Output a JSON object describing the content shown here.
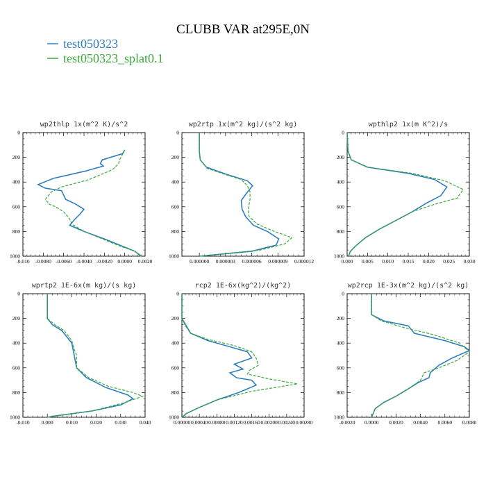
{
  "figure_title": "CLUBB VAR at295E,0N",
  "colors": {
    "test050323": "#2e7ebf",
    "test050323_splat0.1": "#3aa83a"
  },
  "legend": [
    {
      "name": "test050323",
      "color": "#2e7ebf",
      "style": "solid"
    },
    {
      "name": "test050323_splat0.1",
      "color": "#3aa83a",
      "style": "dashed"
    }
  ],
  "chart_data": [
    {
      "type": "line",
      "title": "wp2thlp  1x(m^2 K)/s^2",
      "xlim": [
        -0.01,
        0.002
      ],
      "ylim": [
        0,
        1000
      ],
      "y_inverted": true,
      "xticks": [
        "-0.010",
        "-0.0080",
        "-0.0060",
        "-0.0040",
        "-0.0020",
        "0.0000",
        "0.0020"
      ],
      "xtick_values": [
        -0.01,
        -0.008,
        -0.006,
        -0.004,
        -0.002,
        0,
        0.002
      ],
      "yticks": [
        "0",
        "200",
        "400",
        "600",
        "800",
        "1000"
      ],
      "series": [
        {
          "name": "test050323",
          "points": [
            [
              0.0,
              140
            ],
            [
              -0.0002,
              170
            ],
            [
              -0.0022,
              220
            ],
            [
              -0.0024,
              250
            ],
            [
              -0.0021,
              270
            ],
            [
              -0.0038,
              310
            ],
            [
              -0.007,
              370
            ],
            [
              -0.0085,
              420
            ],
            [
              -0.0078,
              450
            ],
            [
              -0.0062,
              470
            ],
            [
              -0.0058,
              540
            ],
            [
              -0.0048,
              580
            ],
            [
              -0.004,
              620
            ],
            [
              -0.0044,
              660
            ],
            [
              -0.005,
              710
            ],
            [
              -0.0054,
              750
            ],
            [
              -0.004,
              800
            ],
            [
              -0.002,
              860
            ],
            [
              -0.0002,
              920
            ],
            [
              0.001,
              960
            ],
            [
              0.0016,
              1000
            ]
          ]
        },
        {
          "name": "test050323_splat0.1",
          "points": [
            [
              0.0,
              140
            ],
            [
              -0.0003,
              190
            ],
            [
              -0.0005,
              220
            ],
            [
              -0.0006,
              250
            ],
            [
              -0.0012,
              300
            ],
            [
              -0.0035,
              380
            ],
            [
              -0.0062,
              440
            ],
            [
              -0.0072,
              480
            ],
            [
              -0.0078,
              540
            ],
            [
              -0.0074,
              580
            ],
            [
              -0.0068,
              600
            ],
            [
              -0.006,
              640
            ],
            [
              -0.0054,
              700
            ],
            [
              -0.0052,
              740
            ],
            [
              -0.004,
              800
            ],
            [
              -0.0022,
              860
            ],
            [
              -0.0004,
              920
            ],
            [
              0.001,
              960
            ],
            [
              0.0017,
              1000
            ]
          ]
        }
      ]
    },
    {
      "type": "line",
      "title": "wp2rtp  1x(m^2 kg)/(s^2 kg)",
      "xlim": [
        -2e-06,
        1.2e-05
      ],
      "ylim": [
        0,
        1000
      ],
      "y_inverted": true,
      "xticks": [
        "0.000000",
        "0.000003",
        "0.000006",
        "0.000009",
        "0.000012"
      ],
      "xtick_values": [
        0,
        3e-06,
        6e-06,
        9e-06,
        1.2e-05
      ],
      "yticks": [
        "0",
        "200",
        "400",
        "600",
        "800",
        "1000"
      ],
      "series": [
        {
          "name": "test050323",
          "points": [
            [
              0.0,
              0
            ],
            [
              0.0,
              150
            ],
            [
              1e-07,
              220
            ],
            [
              8e-07,
              280
            ],
            [
              3.2e-06,
              340
            ],
            [
              5.5e-06,
              390
            ],
            [
              6.1e-06,
              430
            ],
            [
              5.3e-06,
              500
            ],
            [
              4.8e-06,
              550
            ],
            [
              4.9e-06,
              620
            ],
            [
              5.3e-06,
              680
            ],
            [
              6.2e-06,
              750
            ],
            [
              7.8e-06,
              800
            ],
            [
              9.1e-06,
              860
            ],
            [
              8.8e-06,
              910
            ],
            [
              6e-06,
              960
            ],
            [
              0.0,
              1000
            ]
          ]
        },
        {
          "name": "test050323_splat0.1",
          "points": [
            [
              0.0,
              0
            ],
            [
              0.0,
              150
            ],
            [
              1e-07,
              220
            ],
            [
              9e-07,
              290
            ],
            [
              3e-06,
              340
            ],
            [
              4.8e-06,
              380
            ],
            [
              5.5e-06,
              430
            ],
            [
              5.8e-06,
              480
            ],
            [
              5.8e-06,
              540
            ],
            [
              5.6e-06,
              620
            ],
            [
              5.7e-06,
              680
            ],
            [
              6.6e-06,
              740
            ],
            [
              8.6e-06,
              800
            ],
            [
              1.06e-05,
              850
            ],
            [
              9.8e-06,
              900
            ],
            [
              7e-06,
              950
            ],
            [
              0.0,
              1000
            ]
          ]
        }
      ]
    },
    {
      "type": "line",
      "title": "wpthlp2  1x(m K^2)/s",
      "xlim": [
        0.0,
        0.03
      ],
      "ylim": [
        0,
        1000
      ],
      "y_inverted": true,
      "xticks": [
        "0.000",
        "0.005",
        "0.010",
        "0.015",
        "0.020",
        "0.025",
        "0.030"
      ],
      "xtick_values": [
        0,
        0.005,
        0.01,
        0.015,
        0.02,
        0.025,
        0.03
      ],
      "yticks": [
        "0",
        "200",
        "400",
        "600",
        "800",
        "1000"
      ],
      "series": [
        {
          "name": "test050323",
          "points": [
            [
              0.0,
              0
            ],
            [
              0.0002,
              150
            ],
            [
              0.001,
              220
            ],
            [
              0.005,
              280
            ],
            [
              0.015,
              330
            ],
            [
              0.0215,
              380
            ],
            [
              0.0245,
              440
            ],
            [
              0.023,
              510
            ],
            [
              0.0195,
              570
            ],
            [
              0.016,
              640
            ],
            [
              0.012,
              710
            ],
            [
              0.008,
              780
            ],
            [
              0.0045,
              850
            ],
            [
              0.002,
              920
            ],
            [
              0.0008,
              960
            ],
            [
              0.0003,
              1000
            ]
          ]
        },
        {
          "name": "test050323_splat0.1",
          "points": [
            [
              0.0,
              0
            ],
            [
              0.0002,
              150
            ],
            [
              0.001,
              220
            ],
            [
              0.005,
              280
            ],
            [
              0.016,
              330
            ],
            [
              0.024,
              390
            ],
            [
              0.0285,
              460
            ],
            [
              0.027,
              530
            ],
            [
              0.0215,
              580
            ],
            [
              0.016,
              640
            ],
            [
              0.012,
              710
            ],
            [
              0.008,
              780
            ],
            [
              0.0045,
              850
            ],
            [
              0.002,
              920
            ],
            [
              0.0008,
              960
            ],
            [
              0.0003,
              1000
            ]
          ]
        }
      ]
    },
    {
      "type": "line",
      "title": "wprtp2  1E-6x(m kg)/(s kg)",
      "xlim": [
        -0.01,
        0.04
      ],
      "ylim": [
        0,
        1000
      ],
      "y_inverted": true,
      "xticks": [
        "-0.010",
        "0.000",
        "0.010",
        "0.020",
        "0.030",
        "0.040"
      ],
      "xtick_values": [
        -0.01,
        0,
        0.01,
        0.02,
        0.03,
        0.04
      ],
      "yticks": [
        "0",
        "200",
        "400",
        "600",
        "800",
        "1000"
      ],
      "series": [
        {
          "name": "test050323",
          "points": [
            [
              0.0,
              0
            ],
            [
              0.0,
              200
            ],
            [
              0.002,
              250
            ],
            [
              0.006,
              300
            ],
            [
              0.01,
              400
            ],
            [
              0.011,
              500
            ],
            [
              0.012,
              600
            ],
            [
              0.016,
              680
            ],
            [
              0.024,
              760
            ],
            [
              0.033,
              820
            ],
            [
              0.035,
              850
            ],
            [
              0.03,
              900
            ],
            [
              0.018,
              950
            ],
            [
              0.003,
              990
            ],
            [
              0.0,
              1000
            ]
          ]
        },
        {
          "name": "test050323_splat0.1",
          "points": [
            [
              0.0,
              0
            ],
            [
              0.0,
              200
            ],
            [
              0.003,
              250
            ],
            [
              0.007,
              300
            ],
            [
              0.01,
              380
            ],
            [
              0.011,
              450
            ],
            [
              0.012,
              500
            ],
            [
              0.012,
              600
            ],
            [
              0.017,
              680
            ],
            [
              0.025,
              750
            ],
            [
              0.035,
              800
            ],
            [
              0.039,
              830
            ],
            [
              0.032,
              880
            ],
            [
              0.018,
              950
            ],
            [
              0.003,
              990
            ],
            [
              0.0,
              1000
            ]
          ]
        }
      ]
    },
    {
      "type": "line",
      "title": "rcp2  1E-6x(kg^2)/(kg^2)",
      "xlim": [
        0.0,
        0.0028
      ],
      "ylim": [
        0,
        1000
      ],
      "y_inverted": true,
      "xticks": [
        "0.00000",
        "0.00040",
        "0.00080",
        "0.00120",
        "0.00160",
        "0.00200",
        "0.00240",
        "0.00280"
      ],
      "xtick_values": [
        0,
        0.0004,
        0.0008,
        0.0012,
        0.0016,
        0.002,
        0.0024,
        0.0028
      ],
      "yticks": [
        "0",
        "200",
        "400",
        "600",
        "800",
        "1000"
      ],
      "series": [
        {
          "name": "test050323",
          "points": [
            [
              0.0,
              0
            ],
            [
              0.0,
              200
            ],
            [
              0.0001,
              260
            ],
            [
              0.0002,
              320
            ],
            [
              0.0006,
              380
            ],
            [
              0.0011,
              430
            ],
            [
              0.0015,
              470
            ],
            [
              0.0016,
              520
            ],
            [
              0.0012,
              570
            ],
            [
              0.0014,
              610
            ],
            [
              0.0011,
              640
            ],
            [
              0.00125,
              680
            ],
            [
              0.0016,
              700
            ],
            [
              0.0017,
              740
            ],
            [
              0.0013,
              800
            ],
            [
              0.0008,
              860
            ],
            [
              0.0004,
              920
            ],
            [
              0.0001,
              970
            ],
            [
              0.0,
              1000
            ]
          ]
        },
        {
          "name": "test050323_splat0.1",
          "points": [
            [
              0.0,
              0
            ],
            [
              0.0,
              200
            ],
            [
              8e-05,
              260
            ],
            [
              0.0002,
              320
            ],
            [
              0.0006,
              370
            ],
            [
              0.0012,
              420
            ],
            [
              0.0016,
              470
            ],
            [
              0.0017,
              520
            ],
            [
              0.00175,
              580
            ],
            [
              0.00155,
              620
            ],
            [
              0.0015,
              650
            ],
            [
              0.002,
              690
            ],
            [
              0.00265,
              730
            ],
            [
              0.0016,
              790
            ],
            [
              0.0008,
              860
            ],
            [
              0.0004,
              920
            ],
            [
              0.0001,
              970
            ],
            [
              0.0,
              1000
            ]
          ]
        }
      ]
    },
    {
      "type": "line",
      "title": "wp2rcp  1E-3x(m^2 kg)/(s^2 kg)",
      "xlim": [
        -0.002,
        0.008
      ],
      "ylim": [
        0,
        1000
      ],
      "y_inverted": true,
      "xticks": [
        "-0.0020",
        "0.0000",
        "0.0020",
        "0.0040",
        "0.0060",
        "0.0080"
      ],
      "xtick_values": [
        -0.002,
        0,
        0.002,
        0.004,
        0.006,
        0.008
      ],
      "yticks": [
        "0",
        "200",
        "400",
        "600",
        "800",
        "1000"
      ],
      "series": [
        {
          "name": "test050323",
          "points": [
            [
              0.0,
              0
            ],
            [
              0.0,
              170
            ],
            [
              0.001,
              220
            ],
            [
              0.003,
              260
            ],
            [
              0.0035,
              320
            ],
            [
              0.006,
              380
            ],
            [
              0.0076,
              430
            ],
            [
              0.008,
              460
            ],
            [
              0.0066,
              520
            ],
            [
              0.0055,
              580
            ],
            [
              0.0048,
              640
            ],
            [
              0.0047,
              680
            ],
            [
              0.0038,
              720
            ],
            [
              0.003,
              770
            ],
            [
              0.002,
              830
            ],
            [
              0.001,
              880
            ],
            [
              0.0003,
              930
            ],
            [
              0.0,
              1000
            ]
          ]
        },
        {
          "name": "test050323_splat0.1",
          "points": [
            [
              0.0,
              0
            ],
            [
              0.0,
              170
            ],
            [
              0.0008,
              220
            ],
            [
              0.0025,
              270
            ],
            [
              0.005,
              330
            ],
            [
              0.0072,
              400
            ],
            [
              0.008,
              470
            ],
            [
              0.007,
              540
            ],
            [
              0.0055,
              600
            ],
            [
              0.0043,
              640
            ],
            [
              0.004,
              700
            ],
            [
              0.003,
              770
            ],
            [
              0.002,
              830
            ],
            [
              0.001,
              880
            ],
            [
              0.0003,
              930
            ],
            [
              0.0,
              1000
            ]
          ]
        }
      ]
    }
  ]
}
